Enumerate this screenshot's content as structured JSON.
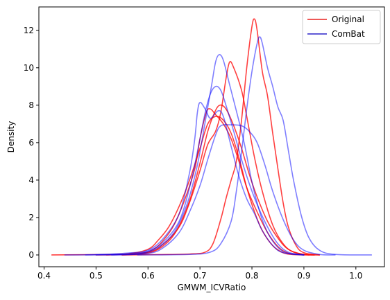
{
  "chart_data": {
    "type": "line",
    "xlabel": "GMWM_ICVRatio",
    "ylabel": "Density",
    "xlim": [
      0.39,
      1.055
    ],
    "ylim": [
      -0.63,
      13.25
    ],
    "xticks": [
      0.4,
      0.5,
      0.6,
      0.7,
      0.8,
      0.9,
      1.0
    ],
    "xtick_labels": [
      "0.4",
      "0.5",
      "0.6",
      "0.7",
      "0.8",
      "0.9",
      "1.0"
    ],
    "yticks": [
      0,
      2,
      4,
      6,
      8,
      10,
      12
    ],
    "ytick_labels": [
      "0",
      "2",
      "4",
      "6",
      "8",
      "10",
      "12"
    ],
    "grid": false,
    "legend": {
      "position": "top-right",
      "entries": [
        {
          "label": "Original",
          "color": "#e8211f"
        },
        {
          "label": "ComBat",
          "color": "#2a22c8"
        }
      ]
    },
    "series": [
      {
        "group": "Original",
        "color": "#ff0000",
        "opacity": 0.75,
        "points": [
          [
            0.415,
            0.0
          ],
          [
            0.5,
            0.02
          ],
          [
            0.56,
            0.06
          ],
          [
            0.6,
            0.3
          ],
          [
            0.62,
            0.8
          ],
          [
            0.64,
            1.5
          ],
          [
            0.66,
            2.6
          ],
          [
            0.68,
            4.0
          ],
          [
            0.7,
            5.7
          ],
          [
            0.715,
            7.0
          ],
          [
            0.73,
            7.4
          ],
          [
            0.745,
            7.2
          ],
          [
            0.76,
            6.5
          ],
          [
            0.775,
            5.2
          ],
          [
            0.79,
            3.6
          ],
          [
            0.805,
            2.3
          ],
          [
            0.82,
            1.3
          ],
          [
            0.84,
            0.5
          ],
          [
            0.86,
            0.12
          ],
          [
            0.88,
            0.02
          ],
          [
            0.92,
            0.0
          ]
        ]
      },
      {
        "group": "Original",
        "color": "#ff0000",
        "opacity": 0.75,
        "points": [
          [
            0.5,
            0.0
          ],
          [
            0.58,
            0.05
          ],
          [
            0.61,
            0.3
          ],
          [
            0.63,
            0.8
          ],
          [
            0.65,
            1.6
          ],
          [
            0.67,
            2.9
          ],
          [
            0.69,
            4.6
          ],
          [
            0.7,
            6.2
          ],
          [
            0.712,
            7.6
          ],
          [
            0.72,
            7.8
          ],
          [
            0.73,
            7.5
          ],
          [
            0.745,
            7.0
          ],
          [
            0.76,
            6.2
          ],
          [
            0.775,
            5.0
          ],
          [
            0.79,
            3.6
          ],
          [
            0.81,
            2.3
          ],
          [
            0.83,
            1.2
          ],
          [
            0.85,
            0.45
          ],
          [
            0.87,
            0.1
          ],
          [
            0.9,
            0.0
          ]
        ]
      },
      {
        "group": "Original",
        "color": "#ff0000",
        "opacity": 0.75,
        "points": [
          [
            0.52,
            0.0
          ],
          [
            0.6,
            0.15
          ],
          [
            0.63,
            0.6
          ],
          [
            0.66,
            1.5
          ],
          [
            0.68,
            2.8
          ],
          [
            0.7,
            4.5
          ],
          [
            0.715,
            5.9
          ],
          [
            0.73,
            6.6
          ],
          [
            0.74,
            7.6
          ],
          [
            0.75,
            9.4
          ],
          [
            0.757,
            10.3
          ],
          [
            0.765,
            10.0
          ],
          [
            0.78,
            8.8
          ],
          [
            0.79,
            7.4
          ],
          [
            0.805,
            5.2
          ],
          [
            0.82,
            3.4
          ],
          [
            0.84,
            1.6
          ],
          [
            0.86,
            0.6
          ],
          [
            0.88,
            0.15
          ],
          [
            0.91,
            0.0
          ]
        ]
      },
      {
        "group": "Original",
        "color": "#ff0000",
        "opacity": 0.75,
        "points": [
          [
            0.55,
            0.0
          ],
          [
            0.6,
            0.1
          ],
          [
            0.63,
            0.5
          ],
          [
            0.655,
            1.3
          ],
          [
            0.68,
            2.9
          ],
          [
            0.7,
            4.9
          ],
          [
            0.715,
            6.6
          ],
          [
            0.728,
            7.6
          ],
          [
            0.738,
            8.0
          ],
          [
            0.75,
            7.8
          ],
          [
            0.765,
            6.9
          ],
          [
            0.78,
            5.7
          ],
          [
            0.795,
            4.3
          ],
          [
            0.81,
            3.1
          ],
          [
            0.83,
            1.8
          ],
          [
            0.85,
            0.9
          ],
          [
            0.87,
            0.3
          ],
          [
            0.9,
            0.03
          ],
          [
            0.93,
            0.0
          ]
        ]
      },
      {
        "group": "Original",
        "color": "#ff0000",
        "opacity": 0.75,
        "points": [
          [
            0.55,
            0.0
          ],
          [
            0.62,
            0.02
          ],
          [
            0.68,
            0.05
          ],
          [
            0.71,
            0.15
          ],
          [
            0.725,
            0.6
          ],
          [
            0.74,
            1.9
          ],
          [
            0.75,
            3.0
          ],
          [
            0.76,
            4.0
          ],
          [
            0.77,
            5.0
          ],
          [
            0.78,
            7.2
          ],
          [
            0.79,
            10.0
          ],
          [
            0.8,
            12.2
          ],
          [
            0.805,
            12.6
          ],
          [
            0.81,
            12.0
          ],
          [
            0.82,
            9.8
          ],
          [
            0.83,
            8.5
          ],
          [
            0.84,
            6.5
          ],
          [
            0.85,
            4.6
          ],
          [
            0.86,
            2.8
          ],
          [
            0.87,
            1.5
          ],
          [
            0.885,
            0.5
          ],
          [
            0.9,
            0.12
          ],
          [
            0.93,
            0.0
          ]
        ]
      },
      {
        "group": "ComBat",
        "color": "#0000ff",
        "opacity": 0.5,
        "points": [
          [
            0.44,
            0.0
          ],
          [
            0.5,
            0.02
          ],
          [
            0.56,
            0.1
          ],
          [
            0.6,
            0.25
          ],
          [
            0.63,
            0.9
          ],
          [
            0.66,
            2.2
          ],
          [
            0.68,
            4.4
          ],
          [
            0.69,
            6.2
          ],
          [
            0.695,
            7.6
          ],
          [
            0.7,
            8.15
          ],
          [
            0.71,
            7.8
          ],
          [
            0.72,
            7.3
          ],
          [
            0.735,
            7.7
          ],
          [
            0.745,
            7.4
          ],
          [
            0.76,
            5.8
          ],
          [
            0.775,
            4.2
          ],
          [
            0.79,
            3.0
          ],
          [
            0.805,
            2.2
          ],
          [
            0.82,
            1.3
          ],
          [
            0.84,
            0.5
          ],
          [
            0.86,
            0.12
          ],
          [
            0.9,
            0.0
          ]
        ]
      },
      {
        "group": "ComBat",
        "color": "#0000ff",
        "opacity": 0.5,
        "points": [
          [
            0.48,
            0.0
          ],
          [
            0.56,
            0.05
          ],
          [
            0.6,
            0.2
          ],
          [
            0.63,
            0.7
          ],
          [
            0.66,
            1.8
          ],
          [
            0.68,
            3.6
          ],
          [
            0.695,
            5.5
          ],
          [
            0.71,
            7.6
          ],
          [
            0.72,
            8.6
          ],
          [
            0.73,
            9.0
          ],
          [
            0.74,
            8.8
          ],
          [
            0.75,
            8.0
          ],
          [
            0.765,
            6.6
          ],
          [
            0.78,
            5.1
          ],
          [
            0.795,
            3.8
          ],
          [
            0.81,
            2.7
          ],
          [
            0.83,
            1.5
          ],
          [
            0.85,
            0.6
          ],
          [
            0.87,
            0.15
          ],
          [
            0.9,
            0.0
          ]
        ]
      },
      {
        "group": "ComBat",
        "color": "#0000ff",
        "opacity": 0.5,
        "points": [
          [
            0.5,
            0.0
          ],
          [
            0.58,
            0.05
          ],
          [
            0.62,
            0.4
          ],
          [
            0.65,
            1.2
          ],
          [
            0.675,
            2.7
          ],
          [
            0.695,
            4.8
          ],
          [
            0.71,
            7.1
          ],
          [
            0.722,
            9.0
          ],
          [
            0.73,
            10.3
          ],
          [
            0.737,
            10.7
          ],
          [
            0.745,
            10.4
          ],
          [
            0.757,
            9.1
          ],
          [
            0.77,
            7.7
          ],
          [
            0.785,
            6.0
          ],
          [
            0.8,
            3.9
          ],
          [
            0.815,
            2.3
          ],
          [
            0.83,
            1.2
          ],
          [
            0.85,
            0.4
          ],
          [
            0.87,
            0.08
          ],
          [
            0.9,
            0.0
          ]
        ]
      },
      {
        "group": "ComBat",
        "color": "#0000ff",
        "opacity": 0.5,
        "points": [
          [
            0.53,
            0.0
          ],
          [
            0.6,
            0.08
          ],
          [
            0.63,
            0.4
          ],
          [
            0.66,
            1.2
          ],
          [
            0.68,
            2.3
          ],
          [
            0.7,
            3.7
          ],
          [
            0.715,
            5.1
          ],
          [
            0.73,
            6.4
          ],
          [
            0.74,
            6.9
          ],
          [
            0.76,
            6.95
          ],
          [
            0.78,
            6.9
          ],
          [
            0.795,
            6.6
          ],
          [
            0.81,
            6.0
          ],
          [
            0.825,
            4.8
          ],
          [
            0.84,
            3.4
          ],
          [
            0.86,
            1.9
          ],
          [
            0.88,
            0.8
          ],
          [
            0.9,
            0.25
          ],
          [
            0.93,
            0.03
          ],
          [
            0.96,
            0.0
          ]
        ]
      },
      {
        "group": "ComBat",
        "color": "#0000ff",
        "opacity": 0.5,
        "points": [
          [
            0.58,
            0.0
          ],
          [
            0.68,
            0.03
          ],
          [
            0.72,
            0.15
          ],
          [
            0.74,
            0.6
          ],
          [
            0.76,
            1.8
          ],
          [
            0.77,
            3.4
          ],
          [
            0.78,
            5.5
          ],
          [
            0.79,
            7.8
          ],
          [
            0.8,
            9.8
          ],
          [
            0.81,
            11.3
          ],
          [
            0.815,
            11.65
          ],
          [
            0.82,
            11.3
          ],
          [
            0.83,
            10.0
          ],
          [
            0.84,
            9.0
          ],
          [
            0.85,
            7.9
          ],
          [
            0.86,
            7.2
          ],
          [
            0.87,
            5.6
          ],
          [
            0.88,
            4.0
          ],
          [
            0.895,
            2.1
          ],
          [
            0.91,
            0.9
          ],
          [
            0.93,
            0.25
          ],
          [
            0.96,
            0.03
          ],
          [
            1.03,
            0.0
          ]
        ]
      }
    ]
  }
}
